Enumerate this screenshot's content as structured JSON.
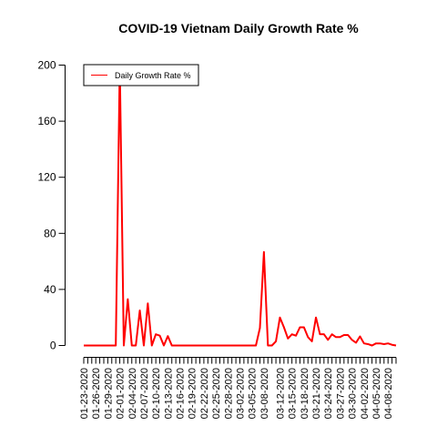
{
  "chart_data": {
    "type": "line",
    "title": "COVID-19 Vietnam Daily Growth Rate %",
    "xlabel": "",
    "ylabel": "",
    "ylim": [
      0,
      200
    ],
    "yticks": [
      0,
      40,
      80,
      120,
      160,
      200
    ],
    "x_tick_labels": [
      "01-23-2020",
      "01-26-2020",
      "01-29-2020",
      "02-01-2020",
      "02-04-2020",
      "02-07-2020",
      "02-10-2020",
      "02-13-2020",
      "02-16-2020",
      "02-19-2020",
      "02-22-2020",
      "02-25-2020",
      "02-28-2020",
      "03-02-2020",
      "03-05-2020",
      "03-08-2020",
      "03-12-2020",
      "03-15-2020",
      "03-18-2020",
      "03-21-2020",
      "03-24-2020",
      "03-27-2020",
      "03-30-2020",
      "04-02-2020",
      "04-05-2020",
      "04-08-2020"
    ],
    "legend": {
      "position": "top-left",
      "entries": [
        {
          "label": "Daily Growth Rate %",
          "color": "#ff0000"
        }
      ]
    },
    "series": [
      {
        "name": "Daily Growth Rate %",
        "color": "#ff0000",
        "x": [
          "01-23-2020",
          "01-24-2020",
          "01-25-2020",
          "01-26-2020",
          "01-27-2020",
          "01-28-2020",
          "01-29-2020",
          "01-30-2020",
          "01-31-2020",
          "02-01-2020",
          "02-02-2020",
          "02-03-2020",
          "02-04-2020",
          "02-05-2020",
          "02-06-2020",
          "02-07-2020",
          "02-08-2020",
          "02-09-2020",
          "02-10-2020",
          "02-11-2020",
          "02-12-2020",
          "02-13-2020",
          "02-14-2020",
          "02-15-2020",
          "02-16-2020",
          "02-17-2020",
          "02-18-2020",
          "02-19-2020",
          "02-20-2020",
          "02-21-2020",
          "02-22-2020",
          "02-23-2020",
          "02-24-2020",
          "02-25-2020",
          "02-26-2020",
          "02-27-2020",
          "02-28-2020",
          "02-29-2020",
          "03-01-2020",
          "03-02-2020",
          "03-03-2020",
          "03-04-2020",
          "03-05-2020",
          "03-06-2020",
          "03-07-2020",
          "03-08-2020",
          "03-09-2020",
          "03-10-2020",
          "03-11-2020",
          "03-12-2020",
          "03-13-2020",
          "03-14-2020",
          "03-15-2020",
          "03-16-2020",
          "03-17-2020",
          "03-18-2020",
          "03-19-2020",
          "03-20-2020",
          "03-21-2020",
          "03-22-2020",
          "03-23-2020",
          "03-24-2020",
          "03-25-2020",
          "03-26-2020",
          "03-27-2020",
          "03-28-2020",
          "03-29-2020",
          "03-30-2020",
          "03-31-2020",
          "04-01-2020",
          "04-02-2020",
          "04-03-2020",
          "04-04-2020",
          "04-05-2020",
          "04-06-2020",
          "04-07-2020",
          "04-08-2020",
          "04-09-2020",
          "04-10-2020"
        ],
        "values": [
          0,
          0,
          0,
          0,
          0,
          0,
          0,
          0,
          0,
          200,
          0,
          33,
          0,
          0,
          25,
          0,
          30,
          0,
          8,
          7,
          0,
          6.7,
          0,
          0,
          0,
          0,
          0,
          0,
          0,
          0,
          0,
          0,
          0,
          0,
          0,
          0,
          0,
          0,
          0,
          0,
          0,
          0,
          0,
          0,
          12.5,
          66.7,
          0,
          0,
          3,
          20,
          13,
          5,
          8,
          7,
          13,
          13,
          6,
          3,
          20,
          8,
          8,
          4,
          8,
          6,
          6,
          7.5,
          7.5,
          4,
          2,
          6.5,
          1.5,
          1,
          0,
          1.5,
          1.5,
          1,
          1.5,
          0.5,
          0
        ]
      }
    ]
  }
}
